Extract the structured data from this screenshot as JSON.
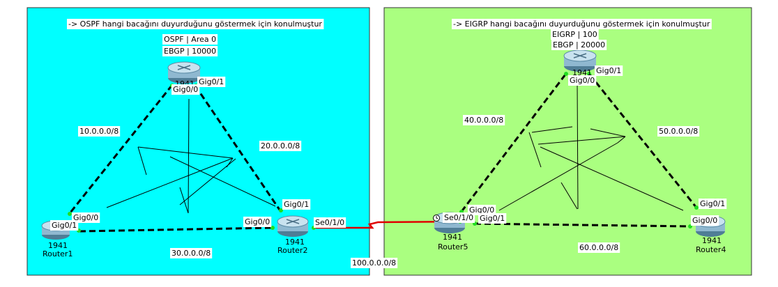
{
  "areas": {
    "left": {
      "note": "-> OSPF hangi bacağını duyurduğunu göstermek için konulmuştur",
      "color": "#00ffff"
    },
    "right": {
      "note": "-> EIGRP hangi bacağını duyurduğunu göstermek için konulmuştur",
      "color": "#aaff80"
    }
  },
  "protocols": {
    "ospf": "OSPF | Area 0",
    "ebgp_left": "EBGP | 10000",
    "eigrp": "EIGRP | 100",
    "ebgp_right": "EBGP | 20000"
  },
  "routers": {
    "top_left": {
      "model": "1941"
    },
    "router1": {
      "model": "1941",
      "name": "Router1"
    },
    "router2": {
      "model": "1941",
      "name": "Router2"
    },
    "top_right": {
      "model": "1941"
    },
    "router5": {
      "model": "1941",
      "name": "Router5"
    },
    "router4": {
      "model": "1941",
      "name": "Router4"
    }
  },
  "networks": {
    "n10": "10.0.0.0/8",
    "n20": "20.0.0.0/8",
    "n30": "30.0.0.0/8",
    "n40": "40.0.0.0/8",
    "n50": "50.0.0.0/8",
    "n60": "60.0.0.0/8",
    "n100": "100.0.0.0/8"
  },
  "interfaces": {
    "tl_gig01": "Gig0/1",
    "tl_gig00": "Gig0/0",
    "r1_gig00": "Gig0/0",
    "r1_gig01": "Gig0/1",
    "r2_gig01": "Gig0/1",
    "r2_gig00": "Gig0/0",
    "r2_se010": "Se0/1/0",
    "tr_gig01": "Gig0/1",
    "tr_gig00": "Gig0/0",
    "r5_gig00": "Gig0/0",
    "r5_se010": "Se0/1/0",
    "r5_gig01": "Gig0/1",
    "r4_gig01": "Gig0/1",
    "r4_gig00": "Gig0/0"
  },
  "colors": {
    "link": "#000000",
    "serial": "#e00000",
    "port": "#22dd22",
    "router": "#8fb8d0"
  }
}
